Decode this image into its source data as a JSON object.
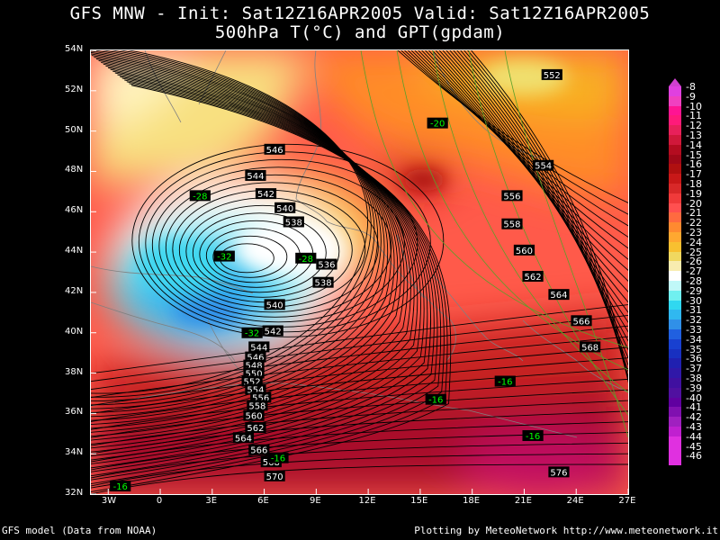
{
  "title_line1": "GFS MNW - Init: Sat12Z16APR2005 Valid: Sat12Z16APR2005",
  "title_line2": "500hPa T(°C) and GPT(gpdam)",
  "footer_left": "GFS model (Data from NOAA)",
  "footer_right": "Plotting by MeteoNetwork http://www.meteonetwork.it",
  "map": {
    "lon_range": [
      -4,
      27
    ],
    "lat_range": [
      32,
      54
    ],
    "lon_ticks": [
      {
        "value": -3,
        "label": "3W"
      },
      {
        "value": 0,
        "label": "0"
      },
      {
        "value": 3,
        "label": "3E"
      },
      {
        "value": 6,
        "label": "6E"
      },
      {
        "value": 9,
        "label": "9E"
      },
      {
        "value": 12,
        "label": "12E"
      },
      {
        "value": 15,
        "label": "15E"
      },
      {
        "value": 18,
        "label": "18E"
      },
      {
        "value": 21,
        "label": "21E"
      },
      {
        "value": 24,
        "label": "24E"
      },
      {
        "value": 27,
        "label": "27E"
      }
    ],
    "lat_ticks": [
      {
        "value": 54,
        "label": "54N"
      },
      {
        "value": 52,
        "label": "52N"
      },
      {
        "value": 50,
        "label": "50N"
      },
      {
        "value": 48,
        "label": "48N"
      },
      {
        "value": 46,
        "label": "46N"
      },
      {
        "value": 44,
        "label": "44N"
      },
      {
        "value": 42,
        "label": "42N"
      },
      {
        "value": 40,
        "label": "40N"
      },
      {
        "value": 38,
        "label": "38N"
      },
      {
        "value": 36,
        "label": "36N"
      },
      {
        "value": 34,
        "label": "34N"
      },
      {
        "value": 32,
        "label": "32N"
      }
    ],
    "gpt_labels": [
      {
        "text": "552",
        "lon": 22.6,
        "lat": 52.8
      },
      {
        "text": "546",
        "lon": 6.6,
        "lat": 49.1
      },
      {
        "text": "554",
        "lon": 22.1,
        "lat": 48.3
      },
      {
        "text": "544",
        "lon": 5.5,
        "lat": 47.8
      },
      {
        "text": "542",
        "lon": 6.1,
        "lat": 46.9
      },
      {
        "text": "556",
        "lon": 20.3,
        "lat": 46.8
      },
      {
        "text": "540",
        "lon": 7.2,
        "lat": 46.2
      },
      {
        "text": "538",
        "lon": 7.7,
        "lat": 45.5
      },
      {
        "text": "558",
        "lon": 20.3,
        "lat": 45.4
      },
      {
        "text": "560",
        "lon": 21.0,
        "lat": 44.1
      },
      {
        "text": "536",
        "lon": 9.6,
        "lat": 43.4
      },
      {
        "text": "562",
        "lon": 21.5,
        "lat": 42.8
      },
      {
        "text": "538",
        "lon": 9.4,
        "lat": 42.5
      },
      {
        "text": "564",
        "lon": 23.0,
        "lat": 41.9
      },
      {
        "text": "540",
        "lon": 6.6,
        "lat": 41.4
      },
      {
        "text": "566",
        "lon": 24.3,
        "lat": 40.6
      },
      {
        "text": "542",
        "lon": 6.5,
        "lat": 40.1
      },
      {
        "text": "568",
        "lon": 24.8,
        "lat": 39.3
      },
      {
        "text": "544",
        "lon": 5.7,
        "lat": 39.3
      },
      {
        "text": "546",
        "lon": 5.5,
        "lat": 38.8
      },
      {
        "text": "548",
        "lon": 5.4,
        "lat": 38.4
      },
      {
        "text": "550",
        "lon": 5.4,
        "lat": 38.0
      },
      {
        "text": "552",
        "lon": 5.3,
        "lat": 37.6
      },
      {
        "text": "554",
        "lon": 5.5,
        "lat": 37.2
      },
      {
        "text": "556",
        "lon": 5.8,
        "lat": 36.8
      },
      {
        "text": "558",
        "lon": 5.6,
        "lat": 36.4
      },
      {
        "text": "560",
        "lon": 5.4,
        "lat": 35.9
      },
      {
        "text": "562",
        "lon": 5.5,
        "lat": 35.3
      },
      {
        "text": "564",
        "lon": 4.8,
        "lat": 34.8
      },
      {
        "text": "566",
        "lon": 5.7,
        "lat": 34.2
      },
      {
        "text": "568",
        "lon": 6.4,
        "lat": 33.6
      },
      {
        "text": "570",
        "lon": 6.6,
        "lat": 32.9
      },
      {
        "text": "576",
        "lon": 23.0,
        "lat": 33.1
      }
    ],
    "temp_labels": [
      {
        "text": "-20",
        "lon": 16.0,
        "lat": 50.4
      },
      {
        "text": "-28",
        "lon": 2.3,
        "lat": 46.8
      },
      {
        "text": "-32",
        "lon": 3.7,
        "lat": 43.8
      },
      {
        "text": "-28",
        "lon": 8.4,
        "lat": 43.7
      },
      {
        "text": "-32",
        "lon": 5.3,
        "lat": 40.0
      },
      {
        "text": "-16",
        "lon": 19.9,
        "lat": 37.6
      },
      {
        "text": "-16",
        "lon": 15.9,
        "lat": 36.7
      },
      {
        "text": "-16",
        "lon": 21.5,
        "lat": 34.9
      },
      {
        "text": "-16",
        "lon": 6.8,
        "lat": 33.8
      },
      {
        "text": "-16",
        "lon": -2.3,
        "lat": 32.4
      }
    ]
  },
  "colorbar": {
    "labels": [
      "-8",
      "-9",
      "-10",
      "-11",
      "-12",
      "-13",
      "-14",
      "-15",
      "-16",
      "-17",
      "-18",
      "-19",
      "-20",
      "-21",
      "-22",
      "-23",
      "-24",
      "-25",
      "-26",
      "-27",
      "-28",
      "-29",
      "-30",
      "-31",
      "-32",
      "-33",
      "-34",
      "-35",
      "-36",
      "-37",
      "-38",
      "-39",
      "-40",
      "-41",
      "-42",
      "-43",
      "-44",
      "-45",
      "-46"
    ],
    "colors": [
      "#e040e0",
      "#f040c0",
      "#ff1493",
      "#ff1a7a",
      "#e8205a",
      "#d0183a",
      "#b40c20",
      "#a00818",
      "#b01010",
      "#c81818",
      "#d82828",
      "#f03a3a",
      "#ff5050",
      "#ff6a40",
      "#ff8a30",
      "#ffa830",
      "#f8c030",
      "#f0d860",
      "#f8ecb0",
      "#ffffff",
      "#c0f8f8",
      "#70f0f0",
      "#30d8f0",
      "#30b8f0",
      "#3090e8",
      "#2060e0",
      "#1840d0",
      "#1830c0",
      "#2020b0",
      "#3018a8",
      "#4010a0",
      "#5010a0",
      "#6000a0",
      "#8010b0",
      "#a020c0",
      "#c020d0",
      "#e030e0",
      "#e030e0",
      "#e030e0"
    ]
  },
  "colors": {
    "background": "#000000",
    "border": "#ffffff",
    "coast": "#808080",
    "contour": "#000000",
    "temp_label_text": "#00ff00"
  }
}
